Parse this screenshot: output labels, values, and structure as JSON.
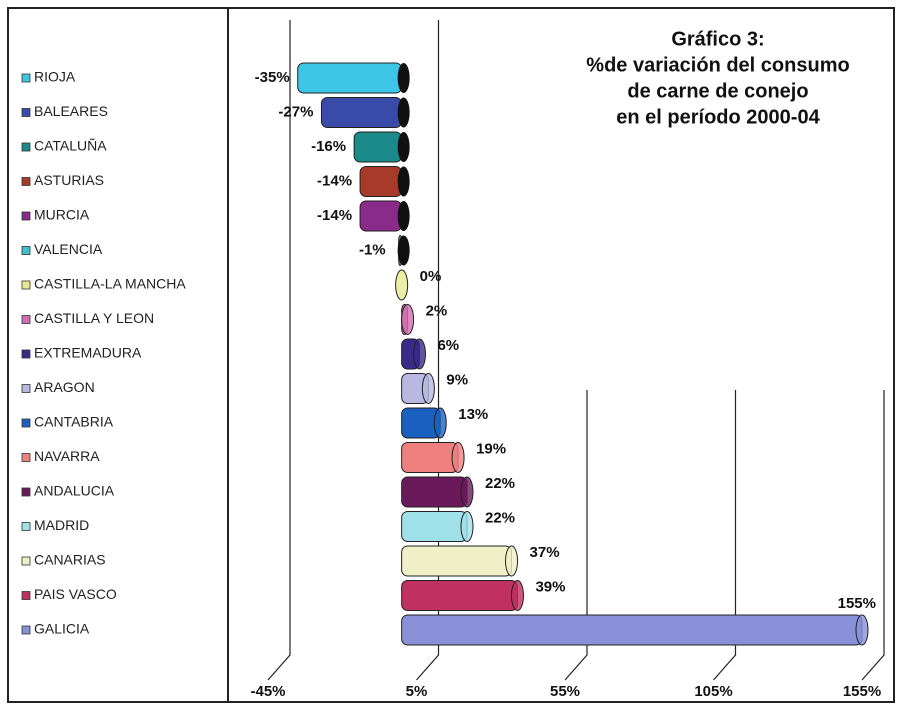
{
  "chart_data": {
    "type": "hbar3d",
    "title": [
      "Gráfico 3:",
      "%de variación del consumo",
      "de carne de conejo",
      "en el período 2000-04"
    ],
    "categories": [
      "RIOJA",
      "BALEARES",
      "CATALUÑA",
      "ASTURIAS",
      "MURCIA",
      "VALENCIA",
      "CASTILLA-LA MANCHA",
      "CASTILLA Y LEON",
      "EXTREMADURA",
      "ARAGON",
      "CANTABRIA",
      "NAVARRA",
      "ANDALUCIA",
      "MADRID",
      "CANARIAS",
      "PAIS VASCO",
      "GALICIA"
    ],
    "values": [
      -35,
      -27,
      -16,
      -14,
      -14,
      -1,
      0,
      2,
      6,
      9,
      13,
      19,
      22,
      22,
      37,
      39,
      155
    ],
    "value_labels": [
      "-35%",
      "-27%",
      "-16%",
      "-14%",
      "-14%",
      "-1%",
      "0%",
      "2%",
      "6%",
      "9%",
      "13%",
      "19%",
      "22%",
      "22%",
      "37%",
      "39%",
      "155%"
    ],
    "colors": [
      "#3ec6e8",
      "#3a4aa8",
      "#1a8a8a",
      "#a83a2a",
      "#8a2a8a",
      "#40c0d0",
      "#e8e890",
      "#d070b0",
      "#3a2a8a",
      "#b8b8e0",
      "#1a60c0",
      "#f08080",
      "#6a1a5a",
      "#a0e0e8",
      "#f0f0c8",
      "#c03060",
      "#8890d8"
    ],
    "xlim": [
      -45,
      155
    ],
    "xticks": [
      {
        "value": -45,
        "label": "-45%"
      },
      {
        "value": 5,
        "label": "5%"
      },
      {
        "value": 55,
        "label": "55%"
      },
      {
        "value": 105,
        "label": "105%"
      },
      {
        "value": 155,
        "label": "155%"
      }
    ],
    "grid": true
  }
}
